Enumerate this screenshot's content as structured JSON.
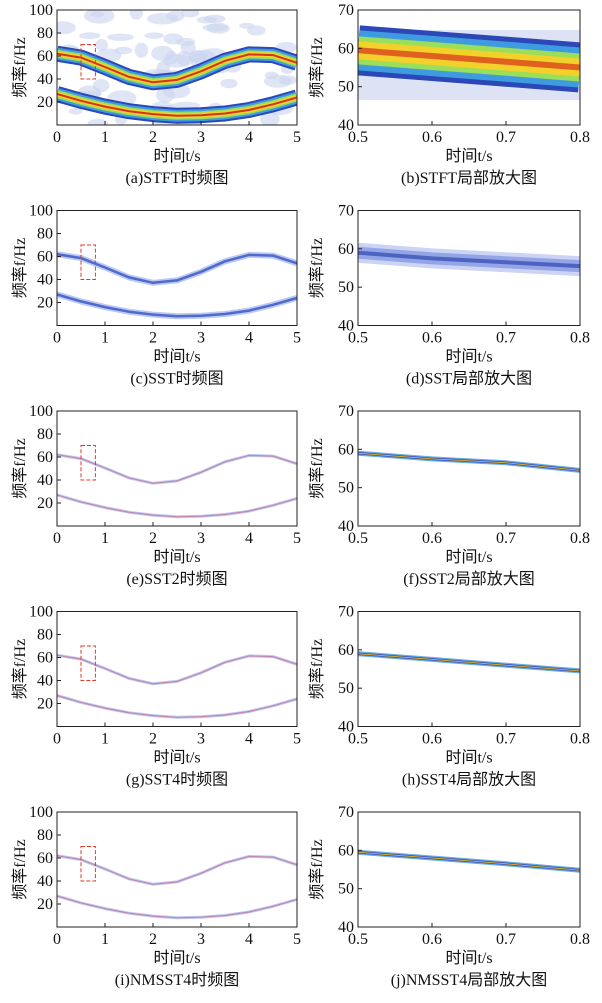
{
  "chart_data": [
    {
      "type": "time-frequency",
      "title": "(a)STFT时频图",
      "xlabel": "时间t/s",
      "ylabel": "频率f/Hz",
      "style": "stft",
      "highlight": {
        "x": [
          0.5,
          0.8
        ],
        "y": [
          40,
          70
        ]
      },
      "xlim": [
        0,
        5
      ],
      "ylim": [
        0,
        100
      ],
      "xticks": [
        0,
        1,
        2,
        3,
        4,
        5
      ],
      "yticks": [
        20,
        40,
        60,
        80,
        100
      ],
      "x": [
        0,
        0.5,
        1,
        1.5,
        2,
        2.5,
        3,
        3.5,
        4,
        4.5,
        5
      ],
      "series": [
        {
          "values": [
            62,
            58.6,
            50.4,
            41.8,
            37.1,
            39.2,
            46.7,
            55.8,
            61.4,
            60.8,
            54.1
          ]
        },
        {
          "values": [
            27,
            21,
            16,
            12,
            9.5,
            8,
            8.5,
            10,
            13,
            18,
            24
          ]
        }
      ]
    },
    {
      "type": "time-frequency",
      "title": "(b)STFT局部放大图",
      "xlabel": "时间t/s",
      "ylabel": "频率f/Hz",
      "style": "stft-zoom",
      "xlim": [
        0.5,
        0.8
      ],
      "ylim": [
        40,
        70
      ],
      "xticks": [
        0.5,
        0.6,
        0.7,
        0.8
      ],
      "yticks": [
        40,
        50,
        60,
        70
      ],
      "x": [
        0.5,
        0.6,
        0.7,
        0.8
      ],
      "series": [
        {
          "values": [
            59.5,
            58,
            56.5,
            55
          ]
        }
      ]
    },
    {
      "type": "time-frequency",
      "title": "(c)SST时频图",
      "xlabel": "时间t/s",
      "ylabel": "频率f/Hz",
      "style": "sst",
      "highlight": {
        "x": [
          0.5,
          0.8
        ],
        "y": [
          40,
          70
        ]
      },
      "xlim": [
        0,
        5
      ],
      "ylim": [
        0,
        100
      ],
      "xticks": [
        0,
        1,
        2,
        3,
        4,
        5
      ],
      "yticks": [
        20,
        40,
        60,
        80,
        100
      ],
      "x": [
        0,
        0.5,
        1,
        1.5,
        2,
        2.5,
        3,
        3.5,
        4,
        4.5,
        5
      ],
      "series": [
        {
          "values": [
            62,
            58.6,
            50.4,
            41.8,
            37.1,
            39.2,
            46.7,
            55.8,
            61.4,
            60.8,
            54.1
          ]
        },
        {
          "values": [
            27,
            21,
            16,
            12,
            9.5,
            8,
            8.5,
            10,
            13,
            18,
            24
          ]
        }
      ]
    },
    {
      "type": "time-frequency",
      "title": "(d)SST局部放大图",
      "xlabel": "时间t/s",
      "ylabel": "频率f/Hz",
      "style": "sst-zoom",
      "xlim": [
        0.5,
        0.8
      ],
      "ylim": [
        40,
        70
      ],
      "xticks": [
        0.5,
        0.6,
        0.7,
        0.8
      ],
      "yticks": [
        40,
        50,
        60,
        70
      ],
      "x": [
        0.5,
        0.6,
        0.7,
        0.8
      ],
      "series": [
        {
          "values": [
            59,
            57.5,
            56.5,
            55.5
          ]
        }
      ]
    },
    {
      "type": "time-frequency",
      "title": "(e)SST2时频图",
      "xlabel": "时间t/s",
      "ylabel": "频率f/Hz",
      "style": "fine",
      "highlight": {
        "x": [
          0.5,
          0.8
        ],
        "y": [
          40,
          70
        ]
      },
      "xlim": [
        0,
        5
      ],
      "ylim": [
        0,
        100
      ],
      "xticks": [
        0,
        1,
        2,
        3,
        4,
        5
      ],
      "yticks": [
        20,
        40,
        60,
        80,
        100
      ],
      "x": [
        0,
        0.5,
        1,
        1.5,
        2,
        2.5,
        3,
        3.5,
        4,
        4.5,
        5
      ],
      "series": [
        {
          "values": [
            62,
            58.6,
            50.4,
            41.8,
            37.1,
            39.2,
            46.7,
            55.8,
            61.4,
            60.8,
            54.1
          ]
        },
        {
          "values": [
            27,
            21,
            16,
            12,
            9.5,
            8,
            8.5,
            10,
            13,
            18,
            24
          ]
        }
      ]
    },
    {
      "type": "time-frequency",
      "title": "(f)SST2局部放大图",
      "xlabel": "时间t/s",
      "ylabel": "频率f/Hz",
      "style": "fine-zoom",
      "xlim": [
        0.5,
        0.8
      ],
      "ylim": [
        40,
        70
      ],
      "xticks": [
        0.5,
        0.6,
        0.7,
        0.8
      ],
      "yticks": [
        40,
        50,
        60,
        70
      ],
      "x": [
        0.5,
        0.6,
        0.7,
        0.8
      ],
      "series": [
        {
          "values": [
            59,
            57.5,
            56.5,
            54.5
          ]
        }
      ]
    },
    {
      "type": "time-frequency",
      "title": "(g)SST4时频图",
      "xlabel": "时间t/s",
      "ylabel": "频率f/Hz",
      "style": "fine",
      "highlight": {
        "x": [
          0.5,
          0.8
        ],
        "y": [
          40,
          70
        ]
      },
      "xlim": [
        0,
        5
      ],
      "ylim": [
        0,
        100
      ],
      "xticks": [
        0,
        1,
        2,
        3,
        4,
        5
      ],
      "yticks": [
        20,
        40,
        60,
        80,
        100
      ],
      "x": [
        0,
        0.5,
        1,
        1.5,
        2,
        2.5,
        3,
        3.5,
        4,
        4.5,
        5
      ],
      "series": [
        {
          "values": [
            62,
            58.6,
            50.4,
            41.8,
            37.1,
            39.2,
            46.7,
            55.8,
            61.4,
            60.8,
            54.1
          ]
        },
        {
          "values": [
            27,
            21,
            16,
            12,
            9.5,
            8,
            8.5,
            10,
            13,
            18,
            24
          ]
        }
      ]
    },
    {
      "type": "time-frequency",
      "title": "(h)SST4局部放大图",
      "xlabel": "时间t/s",
      "ylabel": "频率f/Hz",
      "style": "fine-zoom",
      "xlim": [
        0.5,
        0.8
      ],
      "ylim": [
        40,
        70
      ],
      "xticks": [
        0.5,
        0.6,
        0.7,
        0.8
      ],
      "yticks": [
        40,
        50,
        60,
        70
      ],
      "x": [
        0.5,
        0.6,
        0.7,
        0.8
      ],
      "series": [
        {
          "values": [
            59,
            57.5,
            56,
            54.5
          ]
        }
      ]
    },
    {
      "type": "time-frequency",
      "title": "(i)NMSST4时频图",
      "xlabel": "时间t/s",
      "ylabel": "频率f/Hz",
      "style": "fine",
      "highlight": {
        "x": [
          0.5,
          0.8
        ],
        "y": [
          40,
          70
        ]
      },
      "xlim": [
        0,
        5
      ],
      "ylim": [
        0,
        100
      ],
      "xticks": [
        0,
        1,
        2,
        3,
        4,
        5
      ],
      "yticks": [
        20,
        40,
        60,
        80,
        100
      ],
      "x": [
        0,
        0.5,
        1,
        1.5,
        2,
        2.5,
        3,
        3.5,
        4,
        4.5,
        5
      ],
      "series": [
        {
          "values": [
            62,
            58.6,
            50.4,
            41.8,
            37.1,
            39.2,
            46.7,
            55.8,
            61.4,
            60.8,
            54.1
          ]
        },
        {
          "values": [
            27,
            21,
            16,
            12,
            9.5,
            8,
            8.5,
            10,
            13,
            18,
            24
          ]
        }
      ]
    },
    {
      "type": "time-frequency",
      "title": "(j)NMSST4局部放大图",
      "xlabel": "时间t/s",
      "ylabel": "频率f/Hz",
      "style": "fine-zoom",
      "xlim": [
        0.5,
        0.8
      ],
      "ylim": [
        40,
        70
      ],
      "xticks": [
        0.5,
        0.6,
        0.7,
        0.8
      ],
      "yticks": [
        40,
        50,
        60,
        70
      ],
      "x": [
        0.5,
        0.6,
        0.7,
        0.8
      ],
      "series": [
        {
          "values": [
            59.5,
            58,
            56.5,
            54.8
          ]
        }
      ]
    }
  ]
}
